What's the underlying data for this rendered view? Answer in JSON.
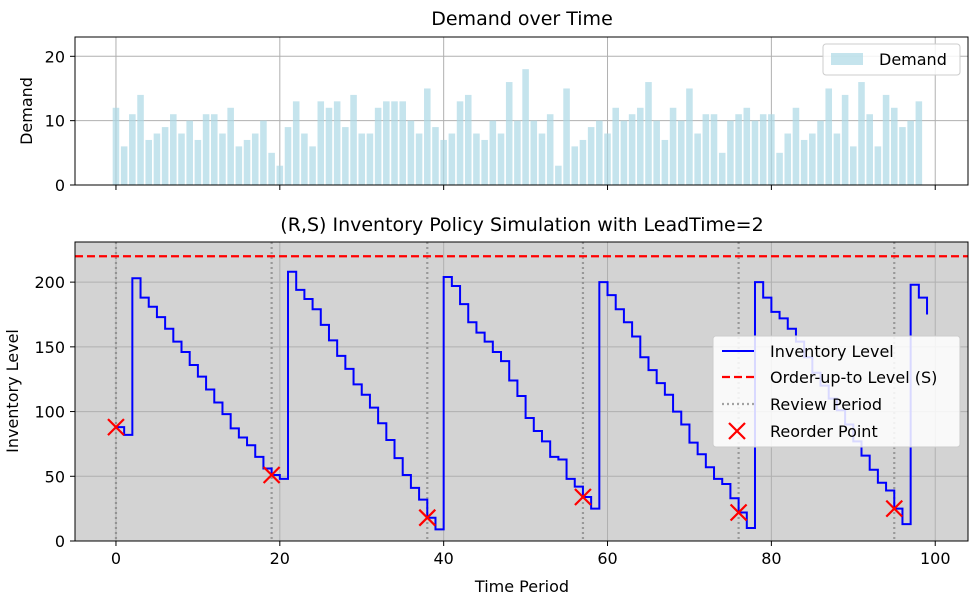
{
  "chart_data": [
    {
      "type": "bar",
      "title": "Demand over Time",
      "xlabel": "",
      "ylabel": "Demand",
      "xlim": [
        -5,
        104
      ],
      "ylim": [
        0,
        23
      ],
      "yticks": [
        0,
        10,
        20
      ],
      "grid": true,
      "legend_position": "upper right",
      "colors": {
        "bar": "#add8e6"
      },
      "series": [
        {
          "name": "Demand",
          "x": [
            0,
            1,
            2,
            3,
            4,
            5,
            6,
            7,
            8,
            9,
            10,
            11,
            12,
            13,
            14,
            15,
            16,
            17,
            18,
            19,
            20,
            21,
            22,
            23,
            24,
            25,
            26,
            27,
            28,
            29,
            30,
            31,
            32,
            33,
            34,
            35,
            36,
            37,
            38,
            39,
            40,
            41,
            42,
            43,
            44,
            45,
            46,
            47,
            48,
            49,
            50,
            51,
            52,
            53,
            54,
            55,
            56,
            57,
            58,
            59,
            60,
            61,
            62,
            63,
            64,
            65,
            66,
            67,
            68,
            69,
            70,
            71,
            72,
            73,
            74,
            75,
            76,
            77,
            78,
            79,
            80,
            81,
            82,
            83,
            84,
            85,
            86,
            87,
            88,
            89,
            90,
            91,
            92,
            93,
            94,
            95,
            96,
            97,
            98,
            99
          ],
          "values": [
            12,
            6,
            11,
            14,
            7,
            8,
            9,
            11,
            8,
            10,
            7,
            11,
            11,
            8,
            12,
            6,
            7,
            8,
            10,
            5,
            3,
            9,
            13,
            8,
            6,
            13,
            12,
            13,
            9,
            14,
            8,
            8,
            12,
            13,
            13,
            13,
            10,
            8,
            15,
            9,
            7,
            8,
            13,
            14,
            8,
            7,
            10,
            8,
            16,
            10,
            18,
            10,
            8,
            11,
            3,
            15,
            6,
            7,
            9,
            10,
            8,
            12,
            10,
            11,
            12,
            16,
            10,
            7,
            12,
            10,
            15,
            8,
            11,
            11,
            5,
            10,
            11,
            12,
            10,
            11,
            11,
            5,
            8,
            12,
            7,
            8,
            10,
            15,
            8,
            14,
            6,
            16,
            11,
            6,
            14,
            12,
            9,
            10,
            13,
            0
          ]
        }
      ]
    },
    {
      "type": "line",
      "title": "(R,S) Inventory Policy Simulation with LeadTime=2",
      "xlabel": "Time Period",
      "ylabel": "Inventory Level",
      "xlim": [
        -5,
        104
      ],
      "ylim": [
        0,
        231
      ],
      "xticks": [
        0,
        20,
        40,
        60,
        80,
        100
      ],
      "yticks": [
        0,
        50,
        100,
        150,
        200
      ],
      "grid": true,
      "background": "#d3d3d3",
      "legend_position": "center right",
      "legend": [
        "Inventory Level",
        "Order-up-to Level (S)",
        "Review Period",
        "Reorder Point"
      ],
      "colors": {
        "inventory": "#0000ff",
        "order_up_to": "#ff0000",
        "review": "#808080",
        "reorder": "#ff0000"
      },
      "order_up_to_level": 220,
      "review_periods": [
        0,
        19,
        38,
        57,
        76,
        95
      ],
      "reorder_points": [
        {
          "x": 0,
          "y": 88
        },
        {
          "x": 19,
          "y": 51
        },
        {
          "x": 38,
          "y": 18
        },
        {
          "x": 57,
          "y": 34
        },
        {
          "x": 76,
          "y": 22
        },
        {
          "x": 95,
          "y": 25
        }
      ],
      "series": [
        {
          "name": "Inventory Level",
          "step": "post",
          "x": [
            0,
            1,
            2,
            3,
            4,
            5,
            6,
            7,
            8,
            9,
            10,
            11,
            12,
            13,
            14,
            15,
            16,
            17,
            18,
            19,
            20,
            21,
            22,
            23,
            24,
            25,
            26,
            27,
            28,
            29,
            30,
            31,
            32,
            33,
            34,
            35,
            36,
            37,
            38,
            39,
            40,
            41,
            42,
            43,
            44,
            45,
            46,
            47,
            48,
            49,
            50,
            51,
            52,
            53,
            54,
            55,
            56,
            57,
            58,
            59,
            60,
            61,
            62,
            63,
            64,
            65,
            66,
            67,
            68,
            69,
            70,
            71,
            72,
            73,
            74,
            75,
            76,
            77,
            78,
            79,
            80,
            81,
            82,
            83,
            84,
            85,
            86,
            87,
            88,
            89,
            90,
            91,
            92,
            93,
            94,
            95,
            96,
            97,
            98,
            99
          ],
          "values": [
            88,
            82,
            203,
            188,
            181,
            173,
            164,
            154,
            146,
            136,
            127,
            117,
            107,
            98,
            87,
            80,
            74,
            65,
            56,
            51,
            48,
            208,
            194,
            187,
            179,
            167,
            155,
            143,
            133,
            121,
            113,
            103,
            91,
            78,
            64,
            51,
            41,
            32,
            18,
            9,
            204,
            197,
            183,
            169,
            161,
            154,
            146,
            139,
            124,
            112,
            95,
            85,
            77,
            65,
            63,
            48,
            42,
            34,
            25,
            200,
            190,
            179,
            169,
            158,
            142,
            132,
            122,
            113,
            100,
            90,
            76,
            67,
            57,
            48,
            44,
            33,
            22,
            10,
            200,
            188,
            177,
            172,
            164,
            154,
            142,
            130,
            120,
            110,
            101,
            90,
            77,
            66,
            55,
            45,
            39,
            25,
            13,
            198,
            188,
            175
          ]
        }
      ]
    }
  ]
}
